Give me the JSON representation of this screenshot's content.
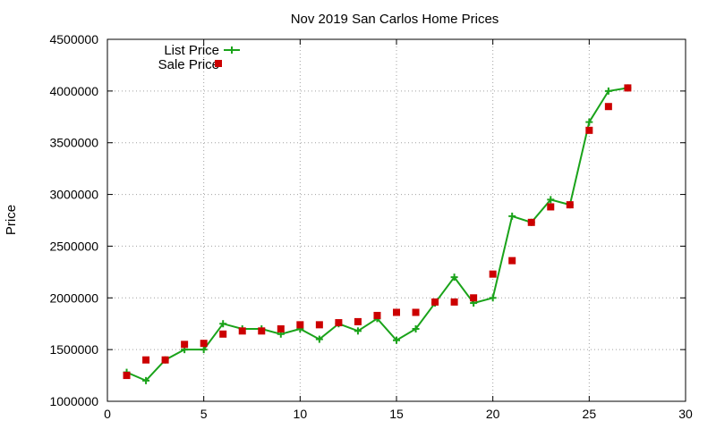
{
  "chart_data": {
    "type": "line",
    "title": "Nov 2019 San Carlos Home Prices",
    "xlabel": "",
    "ylabel": "Price",
    "xlim": [
      0,
      30
    ],
    "ylim": [
      1000000,
      4500000
    ],
    "x_ticks": [
      0,
      5,
      10,
      15,
      20,
      25,
      30
    ],
    "y_ticks": [
      1000000,
      1500000,
      2000000,
      2500000,
      3000000,
      3500000,
      4000000,
      4500000
    ],
    "grid": true,
    "legend_position": "top-left",
    "series": [
      {
        "name": "List Price",
        "style": "line-with-plus-markers",
        "color": "#1aa31a",
        "x": [
          1,
          2,
          3,
          4,
          5,
          6,
          7,
          8,
          9,
          10,
          11,
          12,
          13,
          14,
          15,
          16,
          17,
          18,
          19,
          20,
          21,
          22,
          23,
          24,
          25,
          26,
          27
        ],
        "y": [
          1280000,
          1200000,
          1400000,
          1500000,
          1500000,
          1750000,
          1700000,
          1700000,
          1650000,
          1700000,
          1600000,
          1750000,
          1680000,
          1800000,
          1590000,
          1700000,
          1950000,
          2200000,
          1950000,
          2000000,
          2790000,
          2730000,
          2950000,
          2900000,
          3700000,
          4000000,
          4030000
        ]
      },
      {
        "name": "Sale Price",
        "style": "square-markers",
        "color": "#cc0000",
        "x": [
          1,
          2,
          3,
          4,
          5,
          6,
          7,
          8,
          9,
          10,
          11,
          12,
          13,
          14,
          15,
          16,
          17,
          18,
          19,
          20,
          21,
          22,
          23,
          24,
          25,
          26,
          27
        ],
        "y": [
          1250000,
          1400000,
          1400000,
          1550000,
          1560000,
          1650000,
          1680000,
          1680000,
          1700000,
          1740000,
          1740000,
          1760000,
          1770000,
          1830000,
          1860000,
          1860000,
          1960000,
          1960000,
          2000000,
          2230000,
          2360000,
          2730000,
          2880000,
          2900000,
          3620000,
          3850000,
          4030000
        ]
      }
    ]
  }
}
